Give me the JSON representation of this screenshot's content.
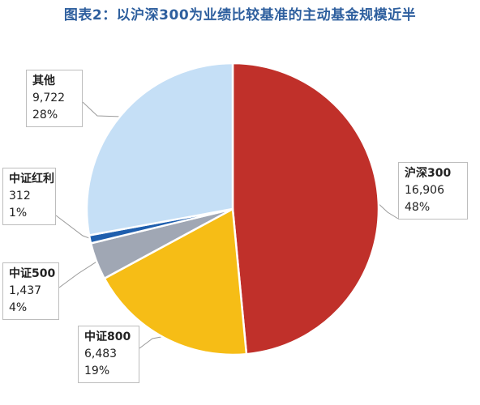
{
  "title": "图表2：以沪深300为业绩比较基准的主动基金规模近半",
  "chart_data": {
    "type": "pie",
    "title": "图表2：以沪深300为业绩比较基准的主动基金规模近半",
    "categories": [
      "沪深300",
      "中证800",
      "中证500",
      "中证红利",
      "其他"
    ],
    "values": [
      16906,
      6483,
      1437,
      312,
      9722
    ],
    "value_labels": [
      "16,906",
      "6,483",
      "1,437",
      "312",
      "9,722"
    ],
    "percent_labels": [
      "48%",
      "19%",
      "4%",
      "1%",
      "28%"
    ],
    "colors": [
      "#c0302a",
      "#f6bd16",
      "#a0a7b4",
      "#1f5fae",
      "#c5dff6"
    ]
  }
}
